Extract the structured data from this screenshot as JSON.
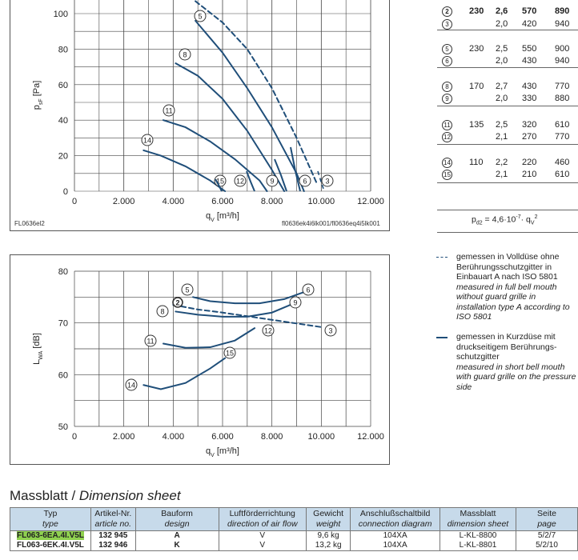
{
  "chart1": {
    "ylabel": "p_sF [Pa]",
    "xlabel": "q_V [m³/h]",
    "id_left": "FL0636el2",
    "id_right": "fl0636ek4i6lk001/fl0636eq4i5lk001",
    "yticks": [
      "0",
      "20",
      "40",
      "60",
      "80",
      "100"
    ],
    "xticks": [
      "0",
      "2.000",
      "4.000",
      "6.000",
      "8.000",
      "10.000",
      "12.000"
    ]
  },
  "chart2": {
    "ylabel": "L_WA [dB]",
    "xlabel": "q_V [m³/h]",
    "yticks": [
      "50",
      "60",
      "70",
      "80"
    ],
    "xticks": [
      "0",
      "2.000",
      "4.000",
      "6.000",
      "8.000",
      "10.000",
      "12.000"
    ]
  },
  "chart_data": [
    {
      "type": "line",
      "title": "",
      "xlabel": "qV [m³/h]",
      "ylabel": "psF [Pa]",
      "xlim": [
        0,
        12000
      ],
      "ylim": [
        0,
        100
      ],
      "grid": true,
      "series": [
        {
          "name": "2",
          "dashed": true,
          "x": [
            4900,
            6000,
            7000,
            8000,
            9000,
            9800
          ],
          "y": [
            107,
            95,
            80,
            58,
            30,
            5
          ]
        },
        {
          "name": "5",
          "x": [
            4900,
            6000,
            7000,
            8000,
            9000,
            9300
          ],
          "y": [
            96,
            78,
            58,
            36,
            10,
            0
          ]
        },
        {
          "name": "8",
          "x": [
            4100,
            5000,
            6000,
            7000,
            8000,
            8500
          ],
          "y": [
            72,
            65,
            52,
            34,
            12,
            0
          ]
        },
        {
          "name": "11",
          "x": [
            3600,
            4500,
            5500,
            6500,
            7500,
            7800
          ],
          "y": [
            40,
            36,
            28,
            18,
            6,
            0
          ]
        },
        {
          "name": "14",
          "x": [
            2800,
            3500,
            4500,
            5500,
            6100
          ],
          "y": [
            23,
            20,
            14,
            6,
            0
          ]
        },
        {
          "name": "3",
          "x": [
            10000
          ]
        },
        {
          "name": "6"
        },
        {
          "name": "9"
        },
        {
          "name": "12"
        },
        {
          "name": "15"
        }
      ],
      "labels": [
        "2",
        "3",
        "5",
        "6",
        "8",
        "9",
        "11",
        "12",
        "14",
        "15"
      ]
    },
    {
      "type": "line",
      "title": "",
      "xlabel": "qV [m³/h]",
      "ylabel": "LWA [dB]",
      "xlim": [
        0,
        12000
      ],
      "ylim": [
        50,
        80
      ],
      "grid": true,
      "series": [
        {
          "name": "2",
          "dashed": true,
          "x": [
            4000,
            5000,
            6000,
            7000,
            8000,
            9000,
            10000
          ],
          "y": [
            73.5,
            72.6,
            72,
            71.3,
            70.6,
            69.9,
            69.2
          ]
        },
        {
          "name": "5-6",
          "x": [
            4800,
            5500,
            6500,
            7500,
            8500,
            9500
          ],
          "y": [
            75,
            74.2,
            73.8,
            73.8,
            74.6,
            76.3
          ]
        },
        {
          "name": "8-9",
          "x": [
            4100,
            5000,
            6000,
            7000,
            8000,
            9000
          ],
          "y": [
            72.2,
            71.6,
            71.2,
            71.2,
            72,
            74
          ]
        },
        {
          "name": "11-12",
          "x": [
            3600,
            4500,
            5500,
            6500,
            7300
          ],
          "y": [
            66,
            65.2,
            65.3,
            66.6,
            69
          ]
        },
        {
          "name": "14-15",
          "x": [
            2800,
            3500,
            4500,
            5500,
            6100
          ],
          "y": [
            58,
            57.2,
            58.4,
            61.2,
            63.2
          ]
        }
      ],
      "labels": [
        "2",
        "3",
        "5",
        "6",
        "8",
        "9",
        "11",
        "12",
        "14",
        "15"
      ]
    }
  ],
  "params_table": {
    "rows": [
      {
        "n": "2",
        "bold": true,
        "v": "230",
        "a": "2,6",
        "rpm": "570",
        "w": "890"
      },
      {
        "n": "3",
        "v": "",
        "a": "2,0",
        "rpm": "420",
        "w": "940"
      },
      {
        "n": "5",
        "v": "230",
        "a": "2,5",
        "rpm": "550",
        "w": "900"
      },
      {
        "n": "6",
        "v": "",
        "a": "2,0",
        "rpm": "430",
        "w": "940"
      },
      {
        "n": "8",
        "v": "170",
        "a": "2,7",
        "rpm": "430",
        "w": "770"
      },
      {
        "n": "9",
        "v": "",
        "a": "2,0",
        "rpm": "330",
        "w": "880"
      },
      {
        "n": "11",
        "v": "135",
        "a": "2,5",
        "rpm": "320",
        "w": "610"
      },
      {
        "n": "12",
        "v": "",
        "a": "2,1",
        "rpm": "270",
        "w": "770"
      },
      {
        "n": "14",
        "v": "110",
        "a": "2,2",
        "rpm": "220",
        "w": "460"
      },
      {
        "n": "15",
        "v": "",
        "a": "2,1",
        "rpm": "210",
        "w": "610"
      }
    ],
    "formula": "p_d2 = 4,6·10^-7 · q_V^2"
  },
  "legend": {
    "dashed": {
      "de": "gemessen in Volldüse ohne Berührungsschutzgitter in Einbauart A nach ISO 5801",
      "en": "measured in full bell mouth without guard grille in installation type A according to ISO 5801"
    },
    "solid": {
      "de": "gemessen in Kurzdüse mit druckseitigem Berührungs-schutzgitter",
      "en": "measured in short bell mouth with guard grille on the pressure side"
    }
  },
  "sheet": {
    "title_de": "Massblatt / ",
    "title_en": "Dimension sheet",
    "headers": [
      {
        "de": "Typ",
        "en": "type"
      },
      {
        "de": "Artikel-Nr.",
        "en": "article no."
      },
      {
        "de": "Bauform",
        "en": "design"
      },
      {
        "de": "Luftförderrichtung",
        "en": "direction of air flow"
      },
      {
        "de": "Gewicht",
        "en": "weight"
      },
      {
        "de": "Anschlußschaltbild",
        "en": "connection diagram"
      },
      {
        "de": "Massblatt",
        "en": "dimension sheet"
      },
      {
        "de": "Seite",
        "en": "page"
      }
    ],
    "rows": [
      {
        "type": "FL063-6EA.4I.V5L",
        "article": "132 945",
        "design": "A",
        "flow": "V",
        "weight": "9,6 kg",
        "conn": "104XA",
        "sheet": "L-KL-8800",
        "page": "5/2/7",
        "highlight": true
      },
      {
        "type": "FL063-6EK.4I.V5L",
        "article": "132 946",
        "design": "K",
        "flow": "V",
        "weight": "13,2 kg",
        "conn": "104XA",
        "sheet": "L-KL-8801",
        "page": "5/2/10",
        "highlight": false
      }
    ]
  }
}
